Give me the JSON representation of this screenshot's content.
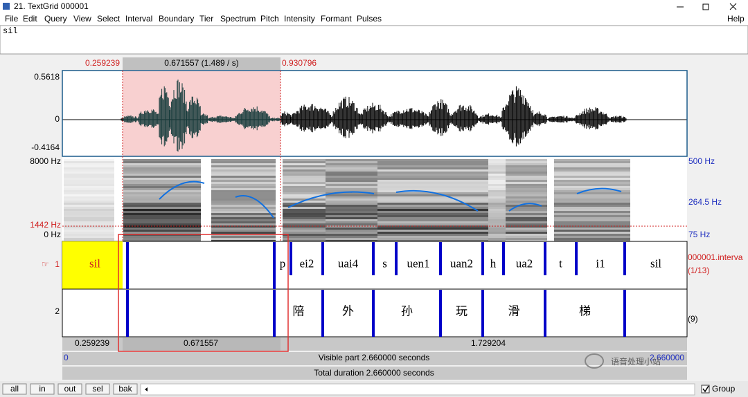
{
  "window": {
    "title": "21. TextGrid 000001"
  },
  "menu": [
    "File",
    "Edit",
    "Query",
    "View",
    "Select",
    "Interval",
    "Boundary",
    "Tier",
    "Spectrum",
    "Pitch",
    "Intensity",
    "Formant",
    "Pulses"
  ],
  "help": "Help",
  "text_field": "sil",
  "time_labels": {
    "left": "0.259239",
    "selection": "0.671557 (1.489 / s)",
    "right": "0.930796"
  },
  "waveform": {
    "max": "0.5618",
    "zero": "0",
    "min": "-0.4164"
  },
  "spectrogram": {
    "top": "8000 Hz",
    "cursor": "1442 Hz",
    "bottom": "0 Hz",
    "pitch_top": "500 Hz",
    "pitch_mid": "264.5 Hz",
    "pitch_bottom": "75 Hz"
  },
  "tiers": [
    {
      "number": "1",
      "name": "000001.interva",
      "count": "(1/13)",
      "intervals": [
        "sil",
        null,
        "p",
        "ei2",
        "uai4",
        "s",
        "uen1",
        "uan2",
        "h",
        "ua2",
        "t",
        "i1",
        "sil"
      ]
    },
    {
      "number": "2",
      "count": "(9)",
      "intervals": [
        null,
        null,
        "陪",
        "外",
        "孙",
        "玩",
        "滑",
        "梯",
        null
      ]
    }
  ],
  "durations": {
    "before": "0.259239",
    "selection": "0.671557",
    "after": "1.729204"
  },
  "visible": {
    "start": "0",
    "text": "Visible part 2.660000 seconds",
    "end": "2.660000"
  },
  "total": "Total duration 2.660000 seconds",
  "buttons": [
    "all",
    "in",
    "out",
    "sel",
    "bak"
  ],
  "group": "Group",
  "watermark": "语音处理小站"
}
